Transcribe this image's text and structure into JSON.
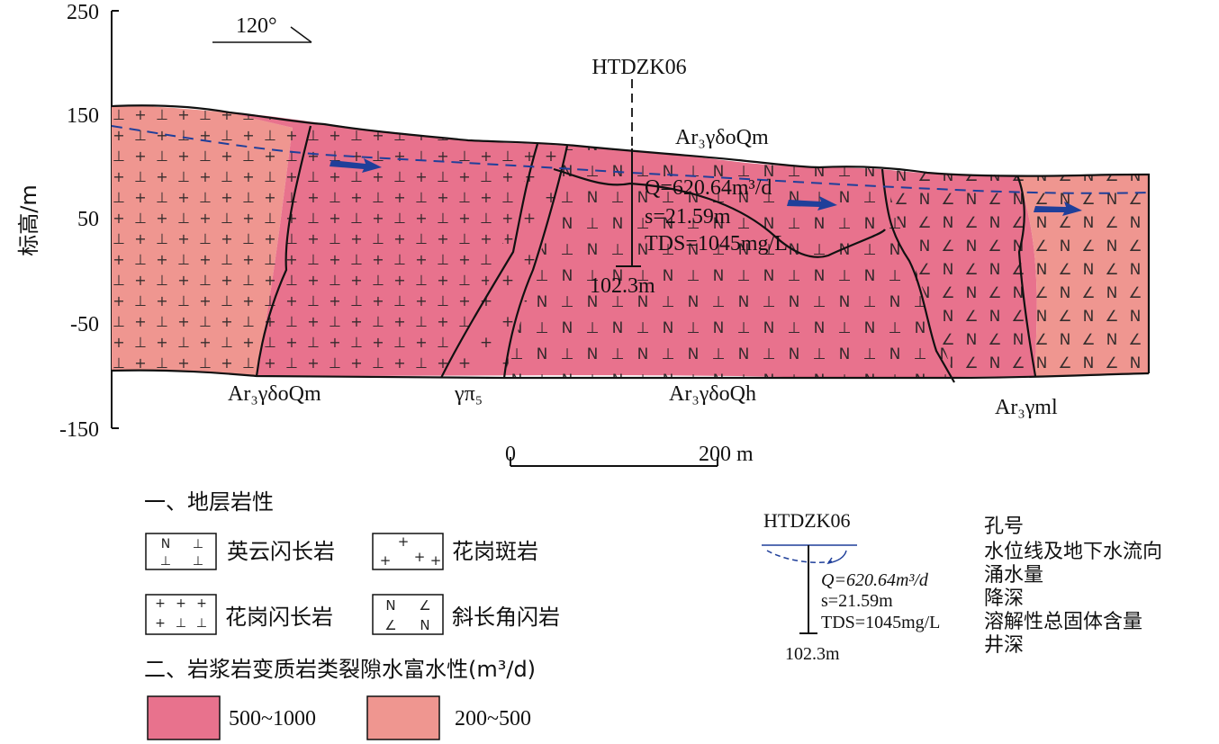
{
  "axis": {
    "label": "标高/m",
    "ticks": [
      "250",
      "150",
      "50",
      "-50",
      "-150"
    ]
  },
  "orientation": "120°",
  "borehole": {
    "id": "HTDZK06",
    "Q": "Q=620.64m³/d",
    "s": "s=21.59m",
    "TDS": "TDS=1045mg/L",
    "depth": "102.3m"
  },
  "units": {
    "top": "Ar₃γδoQm",
    "bottom_left": "Ar₃γδoQm",
    "bottom_gp": "γπ₅",
    "bottom_mid": "Ar₃γδoQh",
    "bottom_right": "Ar₃γml"
  },
  "scale": {
    "start": "0",
    "end": "200 m"
  },
  "colors": {
    "rich_500_1000": "#e8728d",
    "moderate_200_500": "#ef9690",
    "flow_arrow": "#1f3f9a"
  },
  "legend": {
    "section1_title": "一、地层岩性",
    "lithology": [
      {
        "pattern": "N ⊥ / ⊥ ⊥",
        "label": "英云闪长岩"
      },
      {
        "pattern": "+ / + + +",
        "label": "花岗斑岩"
      },
      {
        "pattern": "+ + + / + ⊥ ⊥",
        "label": "花岗闪长岩"
      },
      {
        "pattern": "N ∠ / ∠ N",
        "label": "斜长角闪岩"
      }
    ],
    "section2_title": "二、岩浆岩变质岩类裂隙水富水性(m³/d)",
    "richness": [
      {
        "label": "500~1000"
      },
      {
        "label": "200~500"
      }
    ],
    "borehole_example": {
      "id": "HTDZK06",
      "Q": "Q=620.64m³/d",
      "s": "s=21.59m",
      "TDS": "TDS=1045mg/L",
      "depth": "102.3m",
      "explanations": [
        "孔号",
        "水位线及地下水流向",
        "涌水量",
        "降深",
        "溶解性总固体含量",
        "井深"
      ]
    }
  }
}
